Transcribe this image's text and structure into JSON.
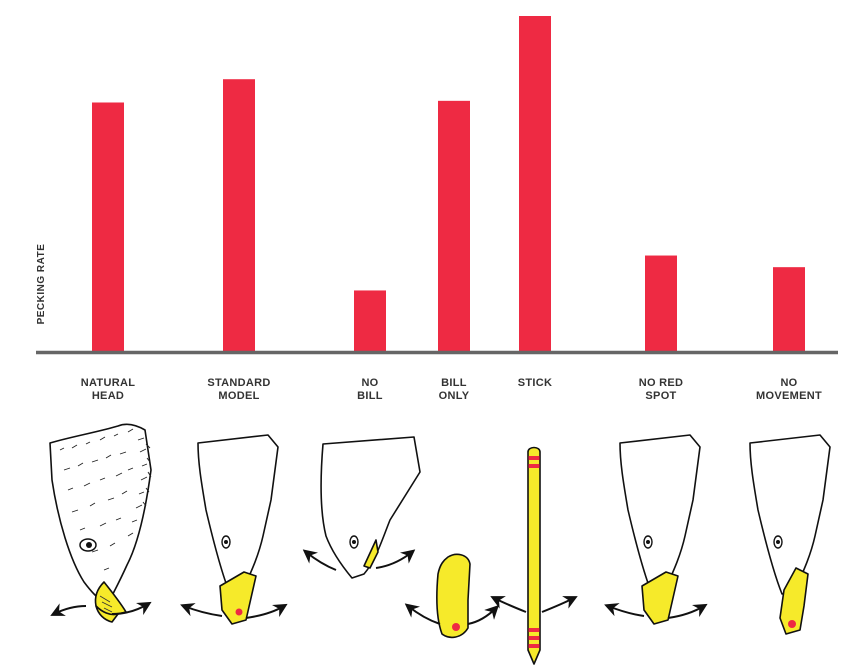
{
  "chart_data": {
    "type": "bar",
    "title": "",
    "xlabel": "",
    "ylabel": "PECKING RATE",
    "ylim": [
      0,
      100
    ],
    "grid": false,
    "categories": [
      [
        "NATURAL",
        "HEAD"
      ],
      [
        "STANDARD",
        "MODEL"
      ],
      [
        "NO",
        "BILL"
      ],
      [
        "BILL",
        "ONLY"
      ],
      [
        "STICK"
      ],
      [
        "NO RED",
        "SPOT"
      ],
      [
        "NO",
        "MOVEMENT"
      ]
    ],
    "values": [
      75,
      82,
      18.5,
      75.5,
      101,
      29,
      25.5
    ],
    "colors": {
      "bar": "#ee2a43",
      "axis": "#666666",
      "beak": "#f6ea2a",
      "spot": "#ee2a43"
    }
  },
  "illustrations": [
    {
      "name": "natural-head-drawing",
      "icon": "gull-head-realistic"
    },
    {
      "name": "standard-model-drawing",
      "icon": "gull-head-model"
    },
    {
      "name": "no-bill-drawing",
      "icon": "gull-head-no-bill"
    },
    {
      "name": "bill-only-drawing",
      "icon": "gull-bill-only"
    },
    {
      "name": "stick-drawing",
      "icon": "yellow-stick"
    },
    {
      "name": "no-red-spot-drawing",
      "icon": "gull-head-no-spot"
    },
    {
      "name": "no-movement-drawing",
      "icon": "gull-head-static"
    }
  ]
}
